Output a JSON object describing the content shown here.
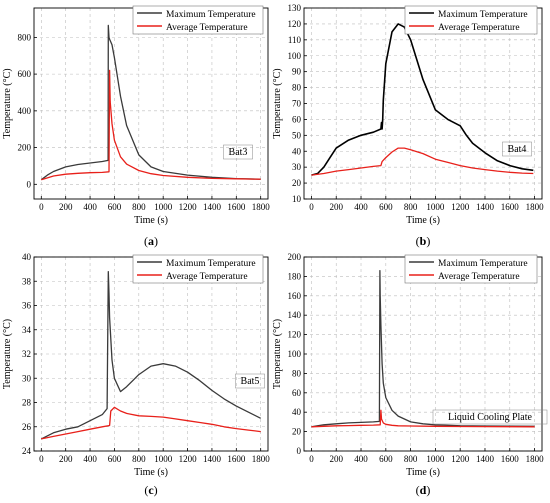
{
  "figure": {
    "panels": [
      {
        "id": "a",
        "caption": "(a)",
        "label": "Bat3"
      },
      {
        "id": "b",
        "caption": "(b)",
        "label": "Bat4"
      },
      {
        "id": "c",
        "caption": "(c)",
        "label": "Bat5"
      },
      {
        "id": "d",
        "caption": "(d)",
        "label": "Liquid Cooling Plate"
      }
    ]
  },
  "colors": {
    "max": "#3a3a3a",
    "max_b": "#000000",
    "avg": "#e8201a",
    "grid": "#bdbdbd"
  },
  "chart_data": [
    {
      "type": "line",
      "panel": "a",
      "xlabel": "Time (s)",
      "ylabel": "Temperature (°C)",
      "xlim": [
        -60,
        1860
      ],
      "ylim": [
        -80,
        960
      ],
      "xticks": [
        0,
        200,
        400,
        600,
        800,
        1000,
        1200,
        1400,
        1600,
        1800
      ],
      "yticks": [
        0,
        200,
        400,
        600,
        800
      ],
      "grid": true,
      "legend": "top-right",
      "series": [
        {
          "name": "Maximum Temperature",
          "x": [
            0,
            50,
            100,
            200,
            300,
            400,
            500,
            548,
            550,
            555,
            560,
            580,
            600,
            650,
            700,
            800,
            900,
            1000,
            1200,
            1400,
            1600,
            1800
          ],
          "y": [
            25,
            50,
            70,
            95,
            108,
            116,
            124,
            130,
            865,
            800,
            790,
            760,
            690,
            480,
            320,
            160,
            95,
            70,
            50,
            38,
            31,
            28
          ]
        },
        {
          "name": "Average Temperature",
          "x": [
            0,
            50,
            100,
            200,
            300,
            400,
            500,
            555,
            560,
            565,
            580,
            600,
            650,
            700,
            800,
            900,
            1000,
            1200,
            1400,
            1600,
            1800
          ],
          "y": [
            25,
            35,
            45,
            55,
            60,
            63,
            65,
            68,
            620,
            450,
            330,
            240,
            150,
            110,
            75,
            58,
            48,
            38,
            32,
            30,
            28
          ]
        }
      ]
    },
    {
      "type": "line",
      "panel": "b",
      "xlabel": "Time (s)",
      "ylabel": "Temperature (°C)",
      "xlim": [
        -60,
        1860
      ],
      "ylim": [
        10,
        130
      ],
      "xticks": [
        0,
        200,
        400,
        600,
        800,
        1000,
        1200,
        1400,
        1600,
        1800
      ],
      "yticks": [
        10,
        20,
        30,
        40,
        50,
        60,
        70,
        80,
        90,
        100,
        110,
        120,
        130
      ],
      "grid": true,
      "legend": "top-right",
      "series": [
        {
          "name": "Maximum Temperature",
          "x": [
            0,
            50,
            100,
            150,
            200,
            300,
            400,
            500,
            560,
            565,
            570,
            575,
            580,
            600,
            650,
            700,
            750,
            800,
            900,
            1000,
            1100,
            1200,
            1250,
            1300,
            1400,
            1500,
            1600,
            1700,
            1790
          ],
          "y": [
            25,
            26,
            30,
            36,
            42,
            47,
            50,
            52,
            54,
            58,
            54,
            60,
            72,
            95,
            115,
            120,
            118,
            110,
            85,
            66,
            60,
            56,
            50,
            45,
            39,
            34,
            31,
            29,
            28
          ]
        },
        {
          "name": "Average Temperature",
          "x": [
            0,
            100,
            200,
            300,
            400,
            500,
            560,
            570,
            600,
            650,
            700,
            750,
            800,
            900,
            1000,
            1100,
            1200,
            1300,
            1400,
            1500,
            1600,
            1700,
            1790
          ],
          "y": [
            25,
            26,
            27.5,
            28.5,
            29.5,
            30.5,
            31,
            33.5,
            36,
            39.5,
            42,
            42,
            41,
            38.5,
            35,
            33,
            31,
            29.5,
            28.5,
            27.5,
            26.8,
            26.3,
            26
          ]
        }
      ]
    },
    {
      "type": "line",
      "panel": "c",
      "xlabel": "Time (s)",
      "ylabel": "Temperature (°C)",
      "xlim": [
        -60,
        1860
      ],
      "ylim": [
        24,
        40
      ],
      "xticks": [
        0,
        200,
        400,
        600,
        800,
        1000,
        1200,
        1400,
        1600,
        1800
      ],
      "yticks": [
        24,
        26,
        28,
        30,
        32,
        34,
        36,
        38,
        40
      ],
      "grid": true,
      "legend": "top-right",
      "series": [
        {
          "name": "Maximum Temperature",
          "x": [
            0,
            100,
            200,
            300,
            400,
            500,
            540,
            550,
            555,
            560,
            580,
            600,
            650,
            700,
            750,
            800,
            900,
            1000,
            1100,
            1200,
            1300,
            1400,
            1500,
            1600,
            1700,
            1800
          ],
          "y": [
            25,
            25.5,
            25.8,
            26,
            26.5,
            27,
            27.5,
            38.8,
            37,
            35,
            31.5,
            30,
            28.9,
            29.3,
            29.8,
            30.3,
            31,
            31.2,
            31,
            30.5,
            29.8,
            29,
            28.3,
            27.7,
            27.2,
            26.7
          ]
        },
        {
          "name": "Average Temperature",
          "x": [
            0,
            100,
            200,
            300,
            400,
            500,
            560,
            570,
            600,
            650,
            700,
            800,
            900,
            1000,
            1100,
            1200,
            1300,
            1400,
            1500,
            1600,
            1700,
            1800
          ],
          "y": [
            25,
            25.2,
            25.4,
            25.6,
            25.8,
            26,
            26.1,
            27.3,
            27.6,
            27.3,
            27.1,
            26.9,
            26.85,
            26.8,
            26.65,
            26.5,
            26.35,
            26.2,
            26,
            25.85,
            25.72,
            25.6
          ]
        }
      ]
    },
    {
      "type": "line",
      "panel": "d",
      "xlabel": "Time (s)",
      "ylabel": "Temperature (°C)",
      "xlim": [
        -60,
        1860
      ],
      "ylim": [
        0,
        200
      ],
      "xticks": [
        0,
        200,
        400,
        600,
        800,
        1000,
        1200,
        1400,
        1600,
        1800
      ],
      "yticks": [
        0,
        20,
        40,
        60,
        80,
        100,
        120,
        140,
        160,
        180,
        200
      ],
      "grid": true,
      "legend": "top-right",
      "series": [
        {
          "name": "Maximum Temperature",
          "x": [
            0,
            100,
            200,
            300,
            400,
            500,
            548,
            552,
            555,
            560,
            570,
            580,
            600,
            650,
            700,
            800,
            900,
            1000,
            1200,
            1400,
            1600,
            1800
          ],
          "y": [
            25,
            27,
            28,
            29,
            29.5,
            30,
            30.5,
            186,
            160,
            130,
            90,
            70,
            55,
            42,
            36,
            30,
            28,
            27,
            26,
            25.8,
            25.6,
            25.5
          ]
        },
        {
          "name": "Average Temperature",
          "x": [
            0,
            100,
            200,
            300,
            400,
            500,
            555,
            560,
            565,
            580,
            600,
            650,
            700,
            800,
            1000,
            1200,
            1400,
            1600,
            1800
          ],
          "y": [
            25,
            25.5,
            26,
            26.2,
            26.5,
            26.7,
            27,
            42,
            33,
            29,
            27.5,
            26.5,
            26,
            25.8,
            25.5,
            25.3,
            25.2,
            25.1,
            25
          ]
        }
      ]
    }
  ]
}
